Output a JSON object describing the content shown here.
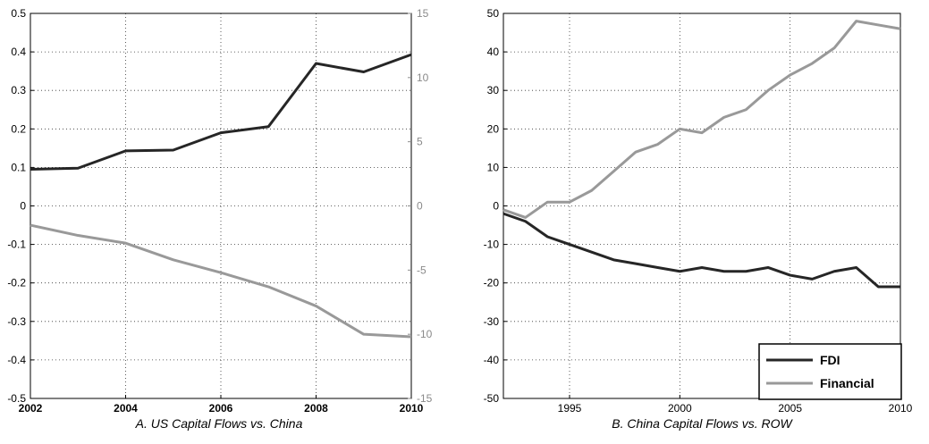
{
  "chart_data": [
    {
      "type": "line",
      "caption": "A. US Capital Flows vs. China",
      "x": [
        2002,
        2003,
        2004,
        2005,
        2006,
        2007,
        2008,
        2009,
        2010
      ],
      "xlim": [
        2002,
        2010
      ],
      "xticks": [
        2002,
        2004,
        2006,
        2008,
        2010
      ],
      "ylim": [
        -0.5,
        0.5
      ],
      "yticks": [
        -0.5,
        -0.4,
        -0.3,
        -0.2,
        -0.1,
        0,
        0.1,
        0.2,
        0.3,
        0.4,
        0.5
      ],
      "ylim_right": [
        -15,
        15
      ],
      "yticks_right": [
        -15,
        -10,
        -5,
        0,
        5,
        10,
        15
      ],
      "grid": true,
      "series": [
        {
          "axis": "left",
          "color": "#262626",
          "values": [
            0.095,
            0.098,
            0.143,
            0.145,
            0.19,
            0.206,
            0.37,
            0.348,
            0.393
          ]
        },
        {
          "axis": "right",
          "color": "#999999",
          "values": [
            -1.5,
            -2.3,
            -2.9,
            -4.2,
            -5.2,
            -6.3,
            -7.8,
            -10.0,
            -10.2
          ]
        }
      ],
      "colors": {
        "axis_right": "#8a8a8a"
      }
    },
    {
      "type": "line",
      "caption": "B. China Capital Flows vs. ROW",
      "x": [
        1992,
        1993,
        1994,
        1995,
        1996,
        1997,
        1998,
        1999,
        2000,
        2001,
        2002,
        2003,
        2004,
        2005,
        2006,
        2007,
        2008,
        2009,
        2010
      ],
      "xlim": [
        1992,
        2010
      ],
      "xticks": [
        1995,
        2000,
        2005,
        2010
      ],
      "ylim": [
        -50,
        50
      ],
      "yticks": [
        -50,
        -40,
        -30,
        -20,
        -10,
        0,
        10,
        20,
        30,
        40,
        50
      ],
      "grid": true,
      "legend_position": "bottom-right",
      "series": [
        {
          "name": "FDI",
          "color": "#262626",
          "values": [
            -2,
            -4,
            -8,
            -10,
            -12,
            -14,
            -15,
            -16,
            -17,
            -16,
            -17,
            -17,
            -16,
            -18,
            -19,
            -17,
            -16,
            -21,
            -21
          ]
        },
        {
          "name": "Financial",
          "color": "#999999",
          "values": [
            -1,
            -3,
            1,
            1,
            4,
            9,
            14,
            16,
            20,
            19,
            23,
            25,
            30,
            34,
            37,
            41,
            48,
            47,
            46
          ]
        }
      ]
    }
  ]
}
